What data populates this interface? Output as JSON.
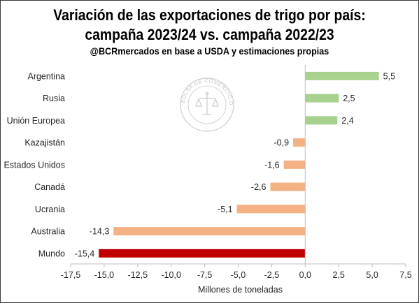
{
  "chart_data": {
    "type": "bar",
    "orientation": "horizontal",
    "title_line1": "Variación de las exportaciones de trigo por país:",
    "title_line2": "campaña 2023/24 vs. campaña 2022/23",
    "subtitle": "@BCRmercados en base a USDA y estimaciones propias",
    "xlabel": "Millones de toneladas",
    "ylabel": "",
    "xlim": [
      -17.5,
      7.5
    ],
    "x_ticks": [
      "-17,5",
      "-15,0",
      "-12,5",
      "-10,0",
      "-7,5",
      "-5,0",
      "-2,5",
      "0,0",
      "2,5",
      "5,0",
      "7,5"
    ],
    "x_tick_values": [
      -17.5,
      -15,
      -12.5,
      -10,
      -7.5,
      -5,
      -2.5,
      0,
      2.5,
      5,
      7.5
    ],
    "categories": [
      "Argentina",
      "Rusia",
      "Unión Europea",
      "Kazajistán",
      "Estados Unidos",
      "Canadá",
      "Ucrania",
      "Australia",
      "Mundo"
    ],
    "values": [
      5.5,
      2.5,
      2.4,
      -0.9,
      -1.6,
      -2.6,
      -5.1,
      -14.3,
      -15.4
    ],
    "value_labels": [
      "5,5",
      "2,5",
      "2,4",
      "-0,9",
      "-1,6",
      "-2,6",
      "-5,1",
      "-14,3",
      "-15,4"
    ],
    "grid": false,
    "legend": "none",
    "colors": {
      "positive": "#a9d18e",
      "negative": "#f4b183",
      "total": "#c00000",
      "axis": "#bfbfbf",
      "text": "#262626"
    },
    "total_category": "Mundo"
  },
  "watermark": {
    "text": "BOLSA DE COMERCIO DE ROSARIO",
    "icon": "scales-of-justice-icon"
  }
}
